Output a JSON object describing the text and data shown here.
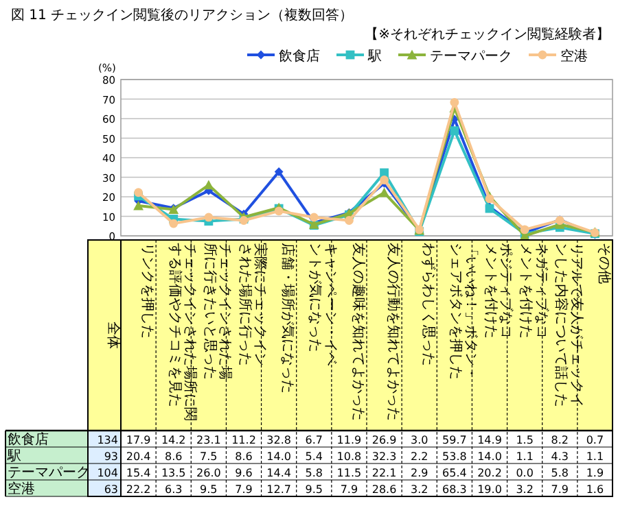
{
  "chart_data": {
    "type": "line",
    "title": "図 11  チェックイン閲覧後のリアクション（複数回答）",
    "subtitle": "【※それぞれチェックイン閲覧経験者】",
    "ylabel": "(%)",
    "categories": [
      "リンクを押した",
      "チェックインされた場所に関する評価やクチコミを見た",
      "チェックインされた場所に行きたいと思った",
      "実際にチェックインされた場所に行った",
      "店舗・場所が気になった",
      "キャンペーン・イベントが気になった",
      "友人の趣味を知れてよかった",
      "友人の行動を知れてよかった",
      "わずらわしく思った",
      "「いいね！」ボタン・シェアボタンを押した",
      "ポジティブなコメントを付けた",
      "ネガティブなコメントを付けた",
      "リアルで友人がチェックインした内容について話した",
      "その他"
    ],
    "series": [
      {
        "name": "飲食店",
        "color": "#2050e0",
        "marker": "diamond",
        "values": [
          17.9,
          14.2,
          23.1,
          11.2,
          32.8,
          6.7,
          11.9,
          26.9,
          3.0,
          59.7,
          14.9,
          1.5,
          8.2,
          0.7
        ],
        "value_labels": [
          "17.9",
          "14.2",
          "23.1",
          "11.2",
          "32.8",
          "6.7",
          "11.9",
          "26.9",
          "3.0",
          "59.7",
          "14.9",
          "1.5",
          "8.2",
          "0.7"
        ]
      },
      {
        "name": "駅",
        "color": "#33c0c4",
        "marker": "square",
        "values": [
          20.4,
          8.6,
          7.5,
          8.6,
          14.0,
          5.4,
          10.8,
          32.3,
          2.2,
          53.8,
          14.0,
          1.1,
          4.3,
          1.1
        ],
        "value_labels": [
          "20.4",
          "8.6",
          "7.5",
          "8.6",
          "14.0",
          "5.4",
          "10.8",
          "32.3",
          "2.2",
          "53.8",
          "14.0",
          "1.1",
          "4.3",
          "1.1"
        ]
      },
      {
        "name": "テーマパーク",
        "color": "#8cb43c",
        "marker": "triangle",
        "values": [
          15.4,
          13.5,
          26.0,
          9.6,
          14.4,
          5.8,
          11.5,
          22.1,
          2.9,
          65.4,
          20.2,
          0.0,
          5.8,
          1.9
        ],
        "value_labels": [
          "15.4",
          "13.5",
          "26.0",
          "9.6",
          "14.4",
          "5.8",
          "11.5",
          "22.1",
          "2.9",
          "65.4",
          "20.2",
          "0.0",
          "5.8",
          "1.9"
        ]
      },
      {
        "name": "空港",
        "color": "#f8c48c",
        "marker": "circle",
        "values": [
          22.2,
          6.3,
          9.5,
          7.9,
          12.7,
          9.5,
          7.9,
          28.6,
          3.2,
          68.3,
          19.0,
          3.2,
          7.9,
          1.6
        ],
        "value_labels": [
          "22.2",
          "6.3",
          "9.5",
          "7.9",
          "12.7",
          "9.5",
          "7.9",
          "28.6",
          "3.2",
          "68.3",
          "19.0",
          "3.2",
          "7.9",
          "1.6"
        ]
      }
    ],
    "annotations": [
      "全体",
      "134",
      "93",
      "104",
      "63"
    ],
    "ylim": [
      0,
      80
    ],
    "yticks": [
      0,
      10,
      20,
      30,
      40,
      50,
      60,
      70,
      80
    ],
    "grid": "y",
    "legend": "top",
    "line_style": "solid"
  }
}
